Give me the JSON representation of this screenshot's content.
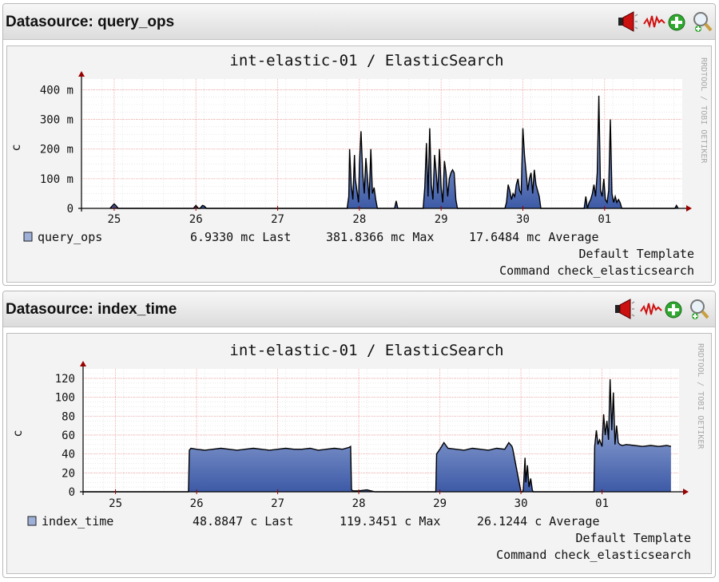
{
  "panels": [
    {
      "title": "Datasource: query_ops",
      "graph_title": "int-elastic-01 / ElasticSearch",
      "ylabel": "c",
      "watermark": "RRDTOOL / TOBI OETIKER",
      "legend": {
        "series": "query_ops",
        "last": "6.9330 mc Last",
        "max": "381.8366 mc Max",
        "avg": "17.6484 mc Average",
        "template": "Default Template",
        "command": "Command check_elasticsearch"
      }
    },
    {
      "title": "Datasource: index_time",
      "graph_title": "int-elastic-01 / ElasticSearch",
      "ylabel": "c",
      "watermark": "RRDTOOL / TOBI OETIKER",
      "legend": {
        "series": "index_time",
        "last": "48.8847  c Last",
        "max": "119.3451  c Max",
        "avg": "26.1244  c Average",
        "template": "Default Template",
        "command": "Command check_elasticsearch"
      }
    }
  ],
  "toolbar_icons": [
    "megaphone-icon",
    "graph-icon",
    "add-icon",
    "zoom-icon"
  ],
  "colors": {
    "area": "#3d5aa6",
    "area_light": "#bccbec",
    "line": "#000000",
    "grid_major": "#f0a0a0",
    "grid_minor": "#d9d9d9",
    "axis_arrow": "#990000"
  },
  "chart_data": [
    {
      "type": "area",
      "title": "int-elastic-01 / ElasticSearch",
      "xlabel": "",
      "ylabel": "c",
      "x_ticks": [
        "25",
        "26",
        "27",
        "28",
        "29",
        "30",
        "01"
      ],
      "y_ticks": [
        "0",
        "100 m",
        "200 m",
        "300 m",
        "400 m"
      ],
      "ylim": [
        0,
        0.42
      ],
      "grid": true,
      "series": [
        {
          "name": "query_ops",
          "x": [
            24.95,
            24.98,
            25.0,
            25.02,
            25.05,
            25.97,
            26.0,
            26.03,
            26.05,
            26.08,
            26.1,
            26.13,
            27.85,
            27.87,
            27.88,
            27.9,
            27.92,
            27.94,
            27.95,
            27.97,
            27.99,
            28.0,
            28.02,
            28.04,
            28.06,
            28.08,
            28.1,
            28.12,
            28.14,
            28.16,
            28.18,
            28.2,
            28.22,
            28.43,
            28.45,
            28.47,
            28.78,
            28.8,
            28.82,
            28.84,
            28.86,
            28.88,
            28.9,
            28.92,
            28.94,
            28.96,
            28.98,
            29.0,
            29.02,
            29.04,
            29.06,
            29.08,
            29.1,
            29.12,
            29.14,
            29.16,
            29.18,
            29.2,
            29.78,
            29.8,
            29.82,
            29.84,
            29.86,
            29.88,
            29.9,
            29.92,
            29.94,
            29.96,
            29.98,
            30.0,
            30.02,
            30.04,
            30.06,
            30.08,
            30.1,
            30.12,
            30.14,
            30.16,
            30.18,
            30.2,
            30.22,
            30.75,
            30.77,
            30.79,
            30.81,
            30.83,
            30.85,
            30.87,
            30.89,
            30.91,
            30.93,
            30.95,
            30.97,
            30.99,
            31.01,
            31.03,
            31.05,
            31.07,
            31.09,
            31.11,
            31.13,
            31.15,
            31.17,
            31.19,
            31.21,
            31.86,
            31.88,
            31.9
          ],
          "values": [
            0,
            0.01,
            0.015,
            0.01,
            0,
            0,
            0.01,
            0,
            0,
            0.01,
            0.008,
            0,
            0,
            0.04,
            0.2,
            0.08,
            0.03,
            0.18,
            0.1,
            0.06,
            0.02,
            0.15,
            0.26,
            0.12,
            0.05,
            0.17,
            0.1,
            0.03,
            0.2,
            0.05,
            0.07,
            0.03,
            0,
            0,
            0.025,
            0,
            0,
            0.07,
            0.22,
            0.04,
            0.27,
            0.08,
            0.03,
            0.18,
            0.12,
            0.05,
            0.2,
            0.07,
            0.02,
            0.16,
            0.12,
            0.04,
            0.1,
            0.12,
            0.13,
            0.12,
            0.03,
            0,
            0,
            0.02,
            0.08,
            0.06,
            0.03,
            0.05,
            0.04,
            0.08,
            0.1,
            0.06,
            0.05,
            0.27,
            0.18,
            0.12,
            0.06,
            0.1,
            0.12,
            0.05,
            0.13,
            0.08,
            0.06,
            0.04,
            0,
            0,
            0.04,
            0,
            0.02,
            0.03,
            0.05,
            0.08,
            0.04,
            0.12,
            0.38,
            0.06,
            0.04,
            0.1,
            0.03,
            0.02,
            0.06,
            0.3,
            0.05,
            0.02,
            0.04,
            0.02,
            0.03,
            0.02,
            0,
            0,
            0.01,
            0
          ]
        }
      ]
    },
    {
      "type": "area",
      "title": "int-elastic-01 / ElasticSearch",
      "xlabel": "",
      "ylabel": "c",
      "x_ticks": [
        "25",
        "26",
        "27",
        "28",
        "29",
        "30",
        "01"
      ],
      "y_ticks": [
        "0",
        "20",
        "40",
        "60",
        "80",
        "100",
        "120"
      ],
      "ylim": [
        0,
        125
      ],
      "grid": true,
      "series": [
        {
          "name": "index_time",
          "x": [
            24.6,
            25.9,
            25.91,
            25.93,
            26.0,
            26.1,
            26.2,
            26.3,
            26.4,
            26.5,
            26.6,
            26.7,
            26.8,
            26.9,
            27.0,
            27.1,
            27.2,
            27.3,
            27.4,
            27.5,
            27.6,
            27.7,
            27.8,
            27.88,
            27.9,
            27.91,
            27.93,
            28.0,
            28.1,
            28.15,
            28.2,
            28.4,
            28.95,
            28.96,
            29.0,
            29.05,
            29.1,
            29.2,
            29.3,
            29.4,
            29.5,
            29.6,
            29.7,
            29.8,
            29.85,
            29.89,
            29.9,
            30.0,
            30.02,
            30.03,
            30.05,
            30.06,
            30.08,
            30.1,
            30.12,
            30.14,
            30.15,
            30.3,
            30.55,
            30.9,
            30.91,
            30.93,
            30.95,
            30.97,
            31.0,
            31.02,
            31.04,
            31.06,
            31.08,
            31.1,
            31.12,
            31.14,
            31.16,
            31.18,
            31.2,
            31.22,
            31.25,
            31.3,
            31.4,
            31.5,
            31.6,
            31.7,
            31.8,
            31.85
          ],
          "values": [
            0,
            0,
            44,
            46,
            45,
            44,
            45,
            46,
            45,
            44,
            45,
            46,
            45,
            44,
            45,
            46,
            45,
            45,
            46,
            44,
            45,
            46,
            45,
            47,
            48,
            2,
            1,
            1,
            2,
            1,
            0,
            0,
            0,
            40,
            45,
            52,
            46,
            45,
            44,
            46,
            45,
            44,
            46,
            45,
            52,
            48,
            45,
            0,
            0,
            3,
            36,
            10,
            28,
            5,
            14,
            2,
            0,
            0,
            0,
            0,
            48,
            65,
            50,
            55,
            48,
            82,
            60,
            75,
            55,
            119,
            65,
            105,
            50,
            70,
            52,
            50,
            49,
            50,
            49,
            48,
            49,
            48,
            49,
            48
          ]
        }
      ]
    }
  ]
}
